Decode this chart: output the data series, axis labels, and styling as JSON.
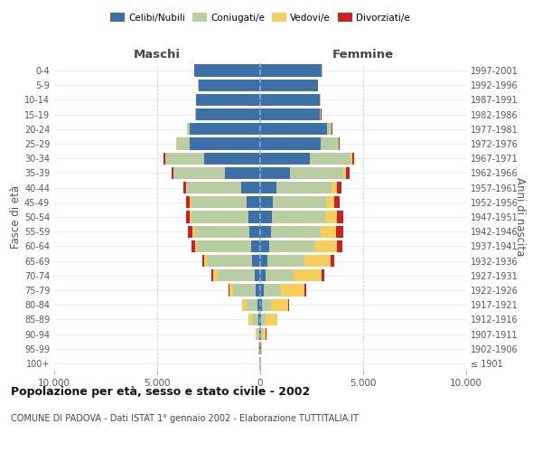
{
  "age_groups": [
    "100+",
    "95-99",
    "90-94",
    "85-89",
    "80-84",
    "75-79",
    "70-74",
    "65-69",
    "60-64",
    "55-59",
    "50-54",
    "45-49",
    "40-44",
    "35-39",
    "30-34",
    "25-29",
    "20-24",
    "15-19",
    "10-14",
    "5-9",
    "0-4"
  ],
  "birth_years": [
    "≤ 1901",
    "1902-1906",
    "1907-1911",
    "1912-1916",
    "1917-1921",
    "1922-1926",
    "1927-1931",
    "1932-1936",
    "1937-1941",
    "1942-1946",
    "1947-1951",
    "1952-1956",
    "1957-1961",
    "1962-1966",
    "1967-1971",
    "1972-1976",
    "1977-1981",
    "1982-1986",
    "1987-1991",
    "1992-1996",
    "1997-2001"
  ],
  "males": {
    "celibi": [
      20,
      40,
      60,
      100,
      130,
      200,
      280,
      380,
      450,
      520,
      580,
      650,
      900,
      1700,
      2700,
      3400,
      3400,
      3100,
      3100,
      3000,
      3200
    ],
    "coniugati": [
      5,
      20,
      80,
      280,
      520,
      1100,
      1800,
      2200,
      2600,
      2700,
      2750,
      2700,
      2650,
      2500,
      1900,
      650,
      150,
      40,
      25,
      15,
      15
    ],
    "vedovi": [
      3,
      15,
      80,
      170,
      220,
      180,
      180,
      130,
      90,
      85,
      70,
      50,
      40,
      25,
      15,
      8,
      4,
      3,
      3,
      3,
      3
    ],
    "divorziati": [
      1,
      3,
      8,
      15,
      25,
      70,
      90,
      90,
      180,
      190,
      190,
      190,
      140,
      90,
      70,
      25,
      8,
      4,
      3,
      3,
      3
    ]
  },
  "females": {
    "nubili": [
      15,
      25,
      40,
      65,
      85,
      170,
      260,
      360,
      460,
      520,
      570,
      620,
      780,
      1450,
      2400,
      2950,
      3250,
      2900,
      2900,
      2800,
      3000
    ],
    "coniugate": [
      3,
      15,
      65,
      210,
      430,
      820,
      1380,
      1800,
      2200,
      2400,
      2600,
      2600,
      2700,
      2600,
      2000,
      850,
      220,
      50,
      25,
      15,
      15
    ],
    "vedove": [
      8,
      40,
      180,
      550,
      850,
      1150,
      1350,
      1250,
      1050,
      780,
      570,
      380,
      230,
      130,
      70,
      25,
      8,
      4,
      3,
      3,
      3
    ],
    "divorziate": [
      1,
      4,
      8,
      15,
      35,
      90,
      140,
      190,
      280,
      330,
      290,
      280,
      230,
      180,
      90,
      45,
      18,
      8,
      4,
      3,
      3
    ]
  },
  "colors": {
    "celibi_nubili": "#3d6fa8",
    "coniugati": "#b8cda0",
    "vedovi": "#f7ce5b",
    "divorziati": "#cc1f1f"
  },
  "title": "Popolazione per età, sesso e stato civile - 2002",
  "subtitle": "COMUNE DI PADOVA - Dati ISTAT 1° gennaio 2002 - Elaborazione TUTTITALIA.IT",
  "xlabel_left": "Maschi",
  "xlabel_right": "Femmine",
  "ylabel_left": "Fasce di età",
  "ylabel_right": "Anni di nascita",
  "xlim": 10000,
  "xticks": [
    -10000,
    -5000,
    0,
    5000,
    10000
  ],
  "xticklabels": [
    "10.000",
    "5.000",
    "0",
    "5.000",
    "10.000"
  ],
  "legend_labels": [
    "Celibi/Nubili",
    "Coniugati/e",
    "Vedovi/e",
    "Divorziati/e"
  ],
  "background_color": "#ffffff",
  "bar_height": 0.82
}
